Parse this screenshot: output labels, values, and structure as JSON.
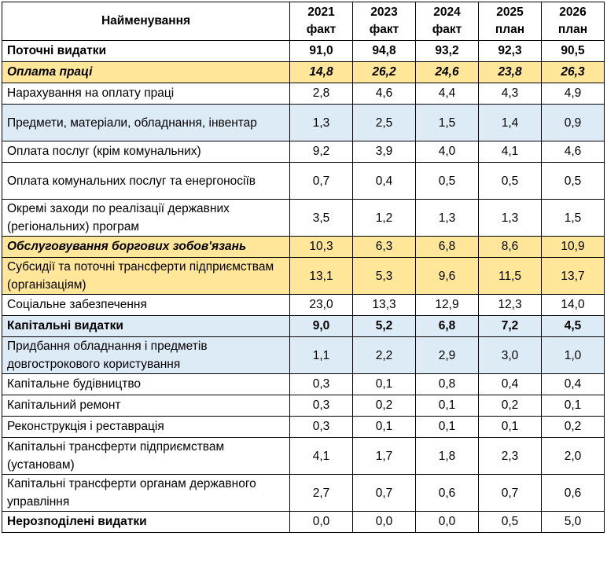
{
  "table": {
    "header": {
      "name": "Найменування",
      "columns": [
        {
          "year": "2021",
          "type": "факт"
        },
        {
          "year": "2023",
          "type": "факт"
        },
        {
          "year": "2024",
          "type": "факт"
        },
        {
          "year": "2025",
          "type": "план"
        },
        {
          "year": "2026",
          "type": "план"
        }
      ]
    },
    "rows": [
      {
        "label": "Поточні видатки",
        "values": [
          "91,0",
          "94,8",
          "93,2",
          "92,3",
          "90,5"
        ]
      },
      {
        "label": "Оплата праці",
        "values": [
          "14,8",
          "26,2",
          "24,6",
          "23,8",
          "26,3"
        ]
      },
      {
        "label": "Нарахування на оплату праці",
        "values": [
          "2,8",
          "4,6",
          "4,4",
          "4,3",
          "4,9"
        ]
      },
      {
        "label": "Предмети, матеріали, обладнання, інвентар",
        "values": [
          "1,3",
          "2,5",
          "1,5",
          "1,4",
          "0,9"
        ]
      },
      {
        "label": "Оплата послуг (крім комунальних)",
        "values": [
          "9,2",
          "3,9",
          "4,0",
          "4,1",
          "4,6"
        ]
      },
      {
        "label": "Оплата комунальних послуг та енергоносіїв",
        "values": [
          "0,7",
          "0,4",
          "0,5",
          "0,5",
          "0,5"
        ]
      },
      {
        "label": "Окремі заходи по реалізації державних (регіональних) програм",
        "values": [
          "3,5",
          "1,2",
          "1,3",
          "1,3",
          "1,5"
        ]
      },
      {
        "label": "Обслуговування боргових зобов'язань",
        "values": [
          "10,3",
          "6,3",
          "6,8",
          "8,6",
          "10,9"
        ]
      },
      {
        "label": "Субсидії та поточні трансферти підприємствам (організаціям)",
        "values": [
          "13,1",
          "5,3",
          "9,6",
          "11,5",
          "13,7"
        ]
      },
      {
        "label": "Соціальне забезпечення",
        "values": [
          "23,0",
          "13,3",
          "12,9",
          "12,3",
          "14,0"
        ]
      },
      {
        "label": "Капітальні видатки",
        "values": [
          "9,0",
          "5,2",
          "6,8",
          "7,2",
          "4,5"
        ]
      },
      {
        "label": "Придбання обладнання і предметів довгострокового користування",
        "values": [
          "1,1",
          "2,2",
          "2,9",
          "3,0",
          "1,0"
        ]
      },
      {
        "label": "Капітальне будівництво",
        "values": [
          "0,3",
          "0,1",
          "0,8",
          "0,4",
          "0,4"
        ]
      },
      {
        "label": "Капітальний ремонт",
        "values": [
          "0,3",
          "0,2",
          "0,1",
          "0,2",
          "0,1"
        ]
      },
      {
        "label": "Реконструкція і реставрація",
        "values": [
          "0,3",
          "0,1",
          "0,1",
          "0,1",
          "0,2"
        ]
      },
      {
        "label": "Капітальні трансферти підприємствам (установам)",
        "values": [
          "4,1",
          "1,7",
          "1,8",
          "2,3",
          "2,0"
        ]
      },
      {
        "label": "Капітальні трансферти органам державного управління",
        "values": [
          "2,7",
          "0,7",
          "0,6",
          "0,7",
          "0,6"
        ]
      },
      {
        "label": "Нерозподілені видатки",
        "values": [
          "0,0",
          "0,0",
          "0,0",
          "0,5",
          "5,0"
        ]
      }
    ]
  },
  "colors": {
    "highlight_yellow": "#ffe699",
    "highlight_blue": "#ddebf7",
    "border": "#000000"
  }
}
